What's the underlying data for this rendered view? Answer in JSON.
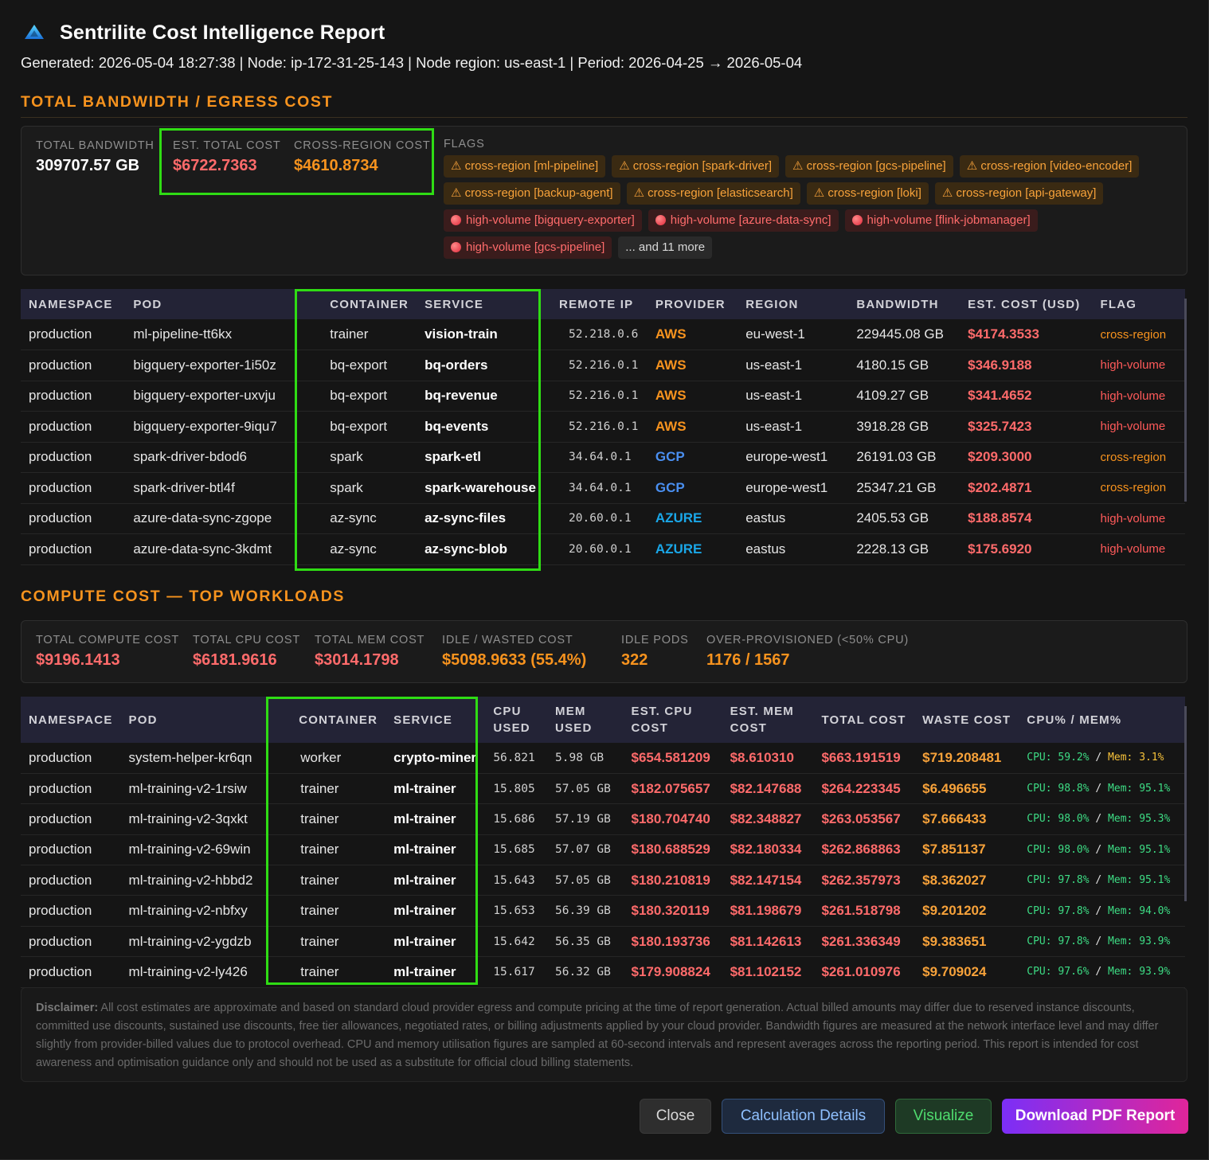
{
  "report": {
    "title": "Sentrilite Cost Intelligence Report",
    "meta": "Generated: 2026-05-04 18:27:38 | Node: ip-172-31-25-143 | Node region: us-east-1 | Period: 2026-04-25 → 2026-05-04",
    "logo_icon": "triangle-logo-icon"
  },
  "bandwidth": {
    "section_title": "TOTAL BANDWIDTH / EGRESS COST",
    "total_bandwidth_label": "TOTAL BANDWIDTH",
    "total_bandwidth_value": "309707.57 GB",
    "est_total_cost_label": "EST. TOTAL COST",
    "est_total_cost_value": "$6722.7363",
    "cross_region_cost_label": "CROSS-REGION COST",
    "cross_region_cost_value": "$4610.8734",
    "flags_label": "FLAGS",
    "flags": [
      {
        "type": "cross",
        "text": "⚠ cross-region [ml-pipeline]"
      },
      {
        "type": "cross",
        "text": "⚠ cross-region [spark-driver]"
      },
      {
        "type": "cross",
        "text": "⚠ cross-region [gcs-pipeline]"
      },
      {
        "type": "cross",
        "text": "⚠ cross-region [video-encoder]"
      },
      {
        "type": "cross",
        "text": "⚠ cross-region [backup-agent]"
      },
      {
        "type": "cross",
        "text": "⚠ cross-region [elasticsearch]"
      },
      {
        "type": "cross",
        "text": "⚠ cross-region [loki]"
      },
      {
        "type": "cross",
        "text": "⚠ cross-region [api-gateway]"
      },
      {
        "type": "high",
        "text": "high-volume [bigquery-exporter]"
      },
      {
        "type": "high",
        "text": "high-volume [azure-data-sync]"
      },
      {
        "type": "high",
        "text": "high-volume [flink-jobmanager]"
      },
      {
        "type": "high",
        "text": "high-volume [gcs-pipeline]"
      },
      {
        "type": "more",
        "text": "... and 11 more"
      }
    ],
    "columns": [
      "NAMESPACE",
      "POD",
      "CONTAINER",
      "SERVICE",
      "REMOTE IP",
      "PROVIDER",
      "REGION",
      "BANDWIDTH",
      "EST. COST (USD)",
      "FLAG"
    ],
    "rows": [
      {
        "namespace": "production",
        "pod": "ml-pipeline-tt6kx",
        "container": "trainer",
        "service": "vision-train",
        "remote_ip": "52.218.0.6",
        "provider": "AWS",
        "region": "eu-west-1",
        "bandwidth": "229445.08 GB",
        "cost": "$4174.3533",
        "flag": "cross-region"
      },
      {
        "namespace": "production",
        "pod": "bigquery-exporter-1i50z",
        "container": "bq-export",
        "service": "bq-orders",
        "remote_ip": "52.216.0.1",
        "provider": "AWS",
        "region": "us-east-1",
        "bandwidth": "4180.15 GB",
        "cost": "$346.9188",
        "flag": "high-volume"
      },
      {
        "namespace": "production",
        "pod": "bigquery-exporter-uxvju",
        "container": "bq-export",
        "service": "bq-revenue",
        "remote_ip": "52.216.0.1",
        "provider": "AWS",
        "region": "us-east-1",
        "bandwidth": "4109.27 GB",
        "cost": "$341.4652",
        "flag": "high-volume"
      },
      {
        "namespace": "production",
        "pod": "bigquery-exporter-9iqu7",
        "container": "bq-export",
        "service": "bq-events",
        "remote_ip": "52.216.0.1",
        "provider": "AWS",
        "region": "us-east-1",
        "bandwidth": "3918.28 GB",
        "cost": "$325.7423",
        "flag": "high-volume"
      },
      {
        "namespace": "production",
        "pod": "spark-driver-bdod6",
        "container": "spark",
        "service": "spark-etl",
        "remote_ip": "34.64.0.1",
        "provider": "GCP",
        "region": "europe-west1",
        "bandwidth": "26191.03 GB",
        "cost": "$209.3000",
        "flag": "cross-region"
      },
      {
        "namespace": "production",
        "pod": "spark-driver-btl4f",
        "container": "spark",
        "service": "spark-warehouse",
        "remote_ip": "34.64.0.1",
        "provider": "GCP",
        "region": "europe-west1",
        "bandwidth": "25347.21 GB",
        "cost": "$202.4871",
        "flag": "cross-region"
      },
      {
        "namespace": "production",
        "pod": "azure-data-sync-zgope",
        "container": "az-sync",
        "service": "az-sync-files",
        "remote_ip": "20.60.0.1",
        "provider": "AZURE",
        "region": "eastus",
        "bandwidth": "2405.53 GB",
        "cost": "$188.8574",
        "flag": "high-volume"
      },
      {
        "namespace": "production",
        "pod": "azure-data-sync-3kdmt",
        "container": "az-sync",
        "service": "az-sync-blob",
        "remote_ip": "20.60.0.1",
        "provider": "AZURE",
        "region": "eastus",
        "bandwidth": "2228.13 GB",
        "cost": "$175.6920",
        "flag": "high-volume"
      }
    ]
  },
  "compute": {
    "section_title": "COMPUTE COST — TOP WORKLOADS",
    "stats": [
      {
        "label": "TOTAL COMPUTE COST",
        "value": "$9196.1413",
        "color": "red"
      },
      {
        "label": "TOTAL CPU COST",
        "value": "$6181.9616",
        "color": "red"
      },
      {
        "label": "TOTAL MEM COST",
        "value": "$3014.1798",
        "color": "red"
      },
      {
        "label": "IDLE / WASTED COST",
        "value": "$5098.9633 (55.4%)",
        "color": "orange"
      },
      {
        "label": "IDLE PODS",
        "value": "322",
        "color": "orange"
      },
      {
        "label": "OVER-PROVISIONED (<50% CPU)",
        "value": "1176 / 1567",
        "color": "orange"
      }
    ],
    "columns": {
      "namespace": "NAMESPACE",
      "pod": "POD",
      "container": "CONTAINER",
      "service": "SERVICE",
      "cpu_used_1": "CPU",
      "cpu_used_2": "USED",
      "mem_used_1": "MEM",
      "mem_used_2": "USED",
      "est_cpu_1": "EST. CPU",
      "est_cpu_2": "COST",
      "est_mem_1": "EST. MEM",
      "est_mem_2": "COST",
      "total_cost": "TOTAL COST",
      "waste_cost": "WASTE COST",
      "cpu_mem": "CPU% / MEM%"
    },
    "rows": [
      {
        "namespace": "production",
        "pod": "system-helper-kr6qn",
        "container": "worker",
        "service": "crypto-miner",
        "cpu_used": "56.821",
        "mem_used": "5.98 GB",
        "cpu_cost": "$654.581209",
        "mem_cost": "$8.610310",
        "total": "$663.191519",
        "waste": "$719.208481",
        "cpu_pct": "59.2%",
        "mem_pct": "3.1%",
        "mem_warn": true
      },
      {
        "namespace": "production",
        "pod": "ml-training-v2-1rsiw",
        "container": "trainer",
        "service": "ml-trainer",
        "cpu_used": "15.805",
        "mem_used": "57.05 GB",
        "cpu_cost": "$182.075657",
        "mem_cost": "$82.147688",
        "total": "$264.223345",
        "waste": "$6.496655",
        "cpu_pct": "98.8%",
        "mem_pct": "95.1%",
        "mem_warn": false
      },
      {
        "namespace": "production",
        "pod": "ml-training-v2-3qxkt",
        "container": "trainer",
        "service": "ml-trainer",
        "cpu_used": "15.686",
        "mem_used": "57.19 GB",
        "cpu_cost": "$180.704740",
        "mem_cost": "$82.348827",
        "total": "$263.053567",
        "waste": "$7.666433",
        "cpu_pct": "98.0%",
        "mem_pct": "95.3%",
        "mem_warn": false
      },
      {
        "namespace": "production",
        "pod": "ml-training-v2-69win",
        "container": "trainer",
        "service": "ml-trainer",
        "cpu_used": "15.685",
        "mem_used": "57.07 GB",
        "cpu_cost": "$180.688529",
        "mem_cost": "$82.180334",
        "total": "$262.868863",
        "waste": "$7.851137",
        "cpu_pct": "98.0%",
        "mem_pct": "95.1%",
        "mem_warn": false
      },
      {
        "namespace": "production",
        "pod": "ml-training-v2-hbbd2",
        "container": "trainer",
        "service": "ml-trainer",
        "cpu_used": "15.643",
        "mem_used": "57.05 GB",
        "cpu_cost": "$180.210819",
        "mem_cost": "$82.147154",
        "total": "$262.357973",
        "waste": "$8.362027",
        "cpu_pct": "97.8%",
        "mem_pct": "95.1%",
        "mem_warn": false
      },
      {
        "namespace": "production",
        "pod": "ml-training-v2-nbfxy",
        "container": "trainer",
        "service": "ml-trainer",
        "cpu_used": "15.653",
        "mem_used": "56.39 GB",
        "cpu_cost": "$180.320119",
        "mem_cost": "$81.198679",
        "total": "$261.518798",
        "waste": "$9.201202",
        "cpu_pct": "97.8%",
        "mem_pct": "94.0%",
        "mem_warn": false
      },
      {
        "namespace": "production",
        "pod": "ml-training-v2-ygdzb",
        "container": "trainer",
        "service": "ml-trainer",
        "cpu_used": "15.642",
        "mem_used": "56.35 GB",
        "cpu_cost": "$180.193736",
        "mem_cost": "$81.142613",
        "total": "$261.336349",
        "waste": "$9.383651",
        "cpu_pct": "97.8%",
        "mem_pct": "93.9%",
        "mem_warn": false
      },
      {
        "namespace": "production",
        "pod": "ml-training-v2-ly426",
        "container": "trainer",
        "service": "ml-trainer",
        "cpu_used": "15.617",
        "mem_used": "56.32 GB",
        "cpu_cost": "$179.908824",
        "mem_cost": "$81.102152",
        "total": "$261.010976",
        "waste": "$9.709024",
        "cpu_pct": "97.6%",
        "mem_pct": "93.9%",
        "mem_warn": false
      }
    ]
  },
  "disclaimer": {
    "label": "Disclaimer:",
    "text": " All cost estimates are approximate and based on standard cloud provider egress and compute pricing at the time of report generation. Actual billed amounts may differ due to reserved instance discounts, committed use discounts, sustained use discounts, free tier allowances, negotiated rates, or billing adjustments applied by your cloud provider. Bandwidth figures are measured at the network interface level and may differ slightly from provider-billed values due to protocol overhead. CPU and memory utilisation figures are sampled at 60-second intervals and represent averages across the reporting period. This report is intended for cost awareness and optimisation guidance only and should not be used as a substitute for official cloud billing statements."
  },
  "buttons": {
    "close": "Close",
    "calc": "Calculation Details",
    "visualize": "Visualize",
    "download": "Download PDF Report"
  },
  "cpumem_prefix": {
    "cpu": "CPU:",
    "sep": "/",
    "mem": "Mem:"
  }
}
